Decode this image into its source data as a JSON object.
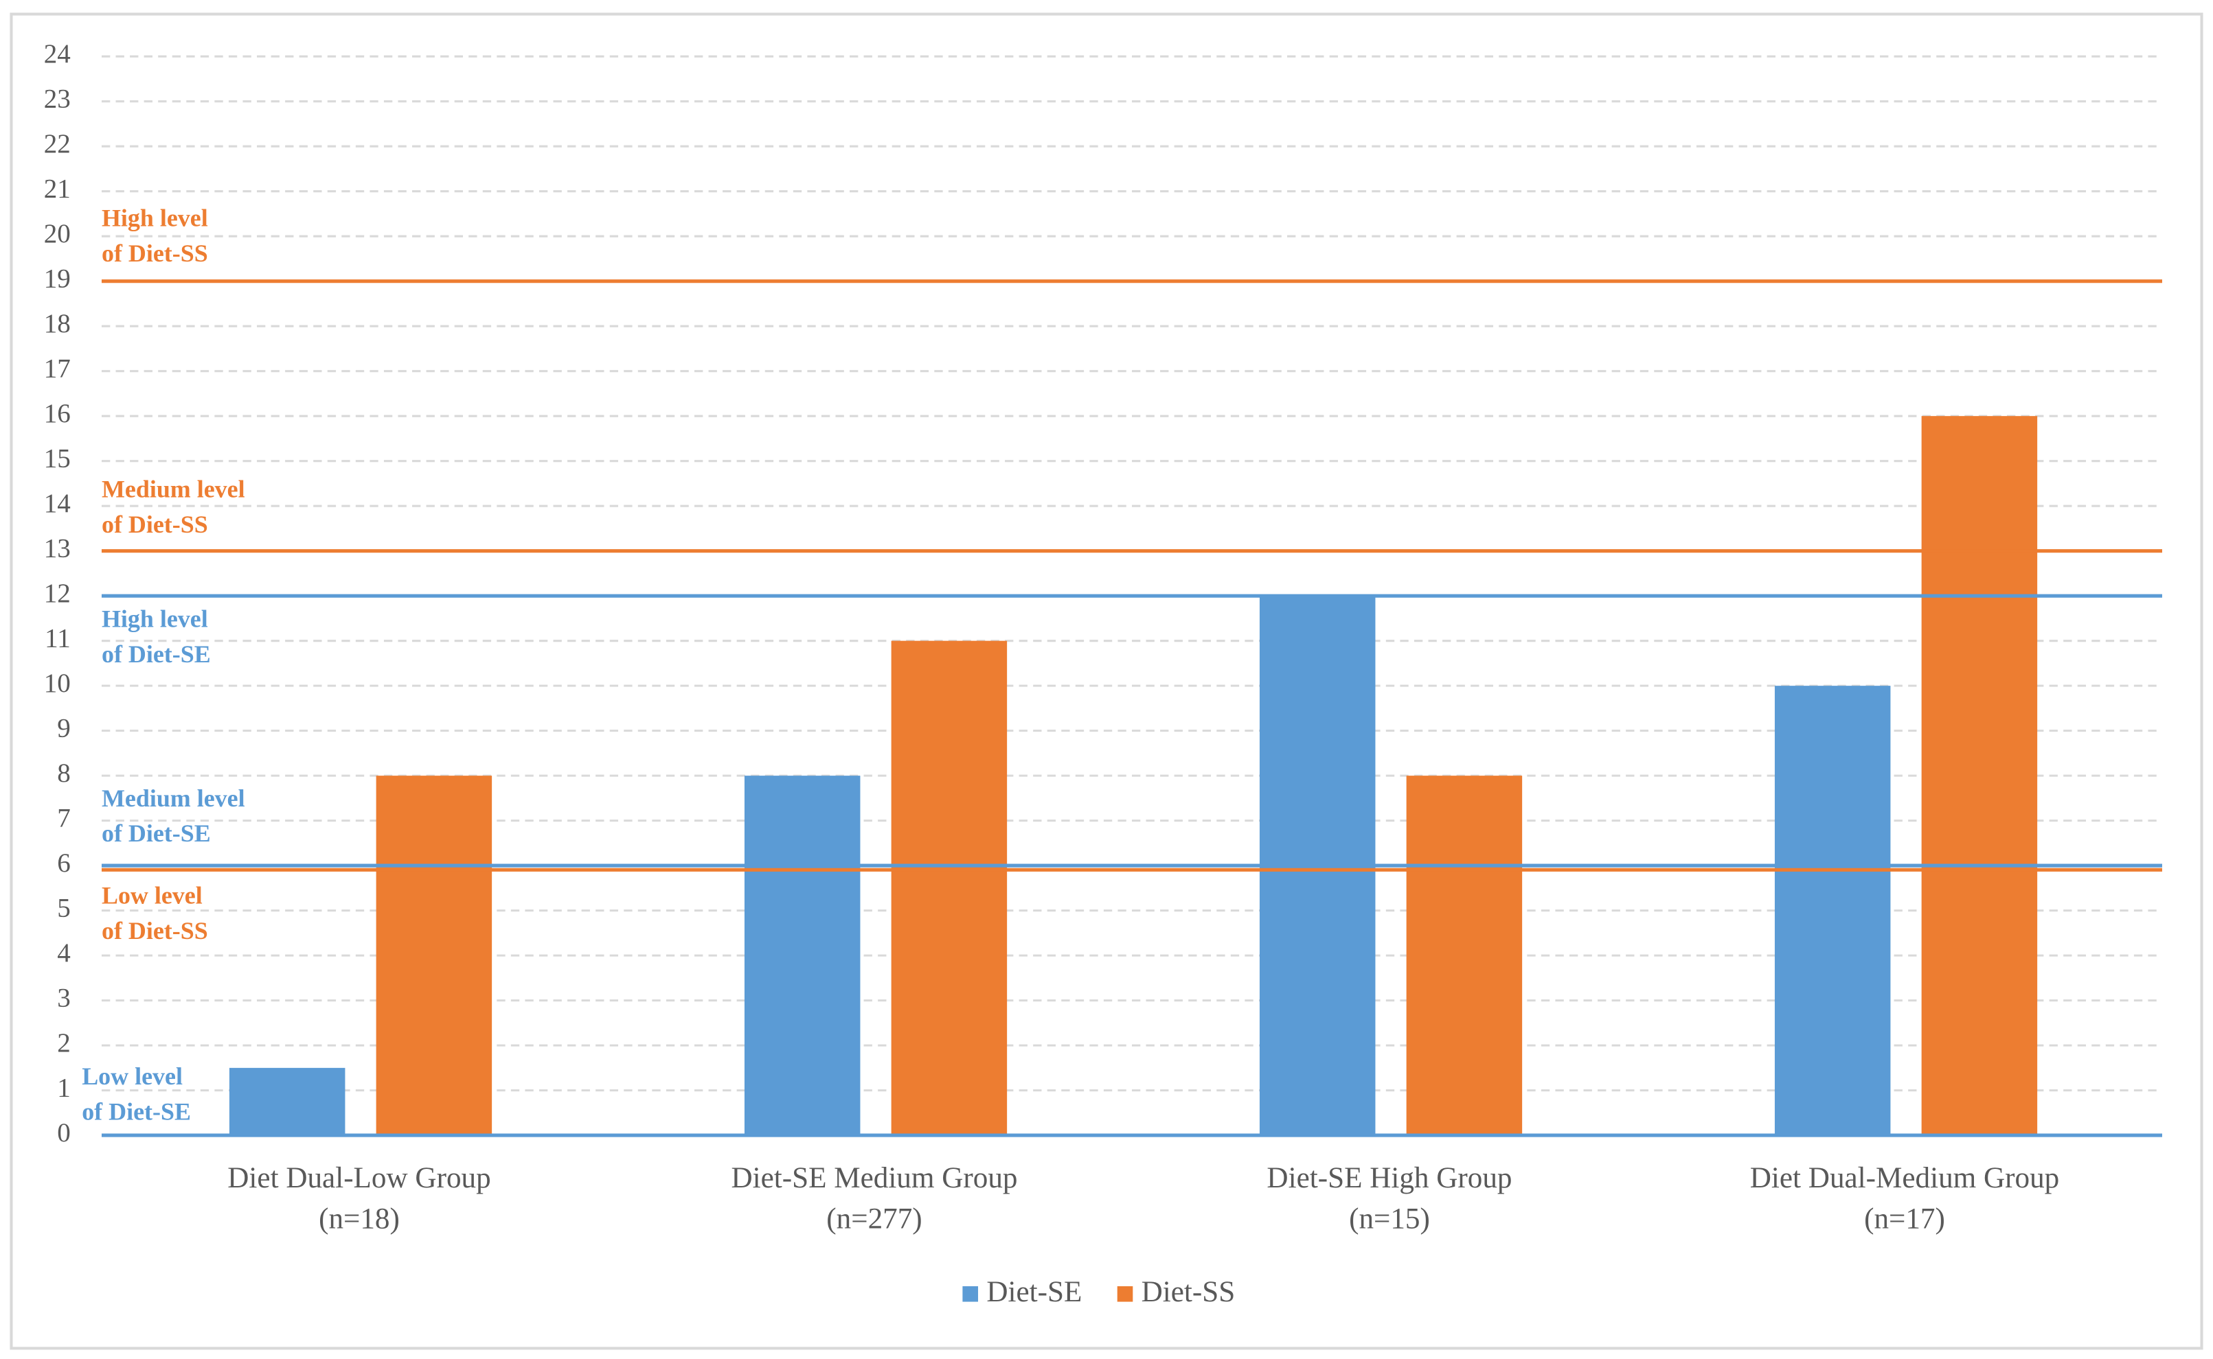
{
  "chart_data": {
    "type": "bar",
    "categories": [
      [
        "Diet Dual-Low Group",
        "(n=18)"
      ],
      [
        "Diet-SE Medium Group",
        "(n=277)"
      ],
      [
        "Diet-SE High Group",
        "(n=15)"
      ],
      [
        "Diet Dual-Medium Group",
        "(n=17)"
      ]
    ],
    "series": [
      {
        "name": "Diet-SE",
        "color": "#5b9bd5",
        "values": [
          1.5,
          8,
          12,
          10
        ]
      },
      {
        "name": "Diet-SS",
        "color": "#ed7d31",
        "values": [
          8,
          11,
          8,
          16
        ]
      }
    ],
    "ylim": [
      0,
      24
    ],
    "yticks": [
      0,
      1,
      2,
      3,
      4,
      5,
      6,
      7,
      8,
      9,
      10,
      11,
      12,
      13,
      14,
      15,
      16,
      17,
      18,
      19,
      20,
      21,
      22,
      23,
      24
    ],
    "grid": true,
    "legend": "bottom",
    "reference_lines": [
      {
        "value": 0,
        "color": "#5b9bd5",
        "label": [
          "Low level",
          "of Diet-SE"
        ]
      },
      {
        "value": 6,
        "color": "#5b9bd5",
        "label": [
          "Medium level",
          "of Diet-SE"
        ]
      },
      {
        "value": 12,
        "color": "#5b9bd5",
        "label": [
          "High level",
          "of Diet-SE"
        ]
      },
      {
        "value": 6,
        "color": "#ed7d31",
        "label": [
          "Low level",
          "of Diet-SS"
        ]
      },
      {
        "value": 13,
        "color": "#ed7d31",
        "label": [
          "Medium level",
          "of Diet-SS"
        ]
      },
      {
        "value": 19,
        "color": "#ed7d31",
        "label": [
          "High level",
          "of Diet-SS"
        ]
      }
    ]
  }
}
